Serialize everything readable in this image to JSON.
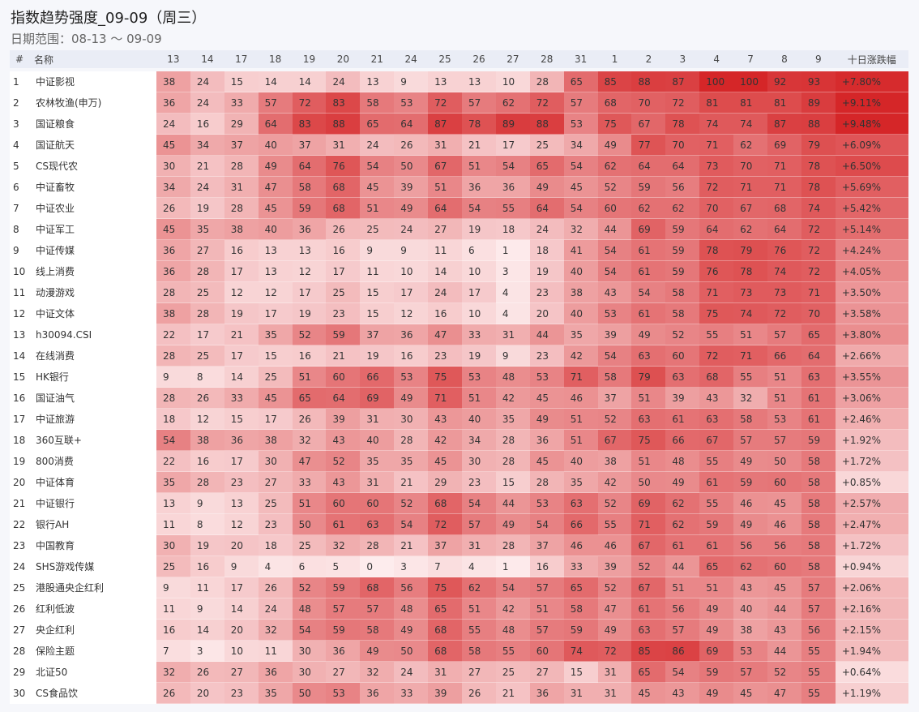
{
  "header": {
    "title": "指数趋势强度_09-09（周三）",
    "subtitle": "日期范围：08-13 ～ 09-09"
  },
  "table": {
    "columns": {
      "rank": "#",
      "name": "名称",
      "days": [
        "13",
        "14",
        "17",
        "18",
        "19",
        "20",
        "21",
        "24",
        "25",
        "26",
        "27",
        "28",
        "31",
        "1",
        "2",
        "3",
        "4",
        "7",
        "8",
        "9"
      ],
      "change": "十日涨跌幅"
    },
    "rows": [
      {
        "rank": "1",
        "name": "中证影视",
        "values": [
          38,
          24,
          15,
          14,
          14,
          24,
          13,
          9,
          13,
          13,
          10,
          28,
          65,
          85,
          88,
          87,
          100,
          100,
          92,
          93
        ],
        "change": "+7.80%"
      },
      {
        "rank": "2",
        "name": "农林牧渔(申万)",
        "values": [
          36,
          24,
          33,
          57,
          72,
          83,
          58,
          53,
          72,
          57,
          62,
          72,
          57,
          68,
          70,
          72,
          81,
          81,
          81,
          89
        ],
        "change": "+9.11%"
      },
      {
        "rank": "3",
        "name": "国证粮食",
        "values": [
          24,
          16,
          29,
          64,
          83,
          88,
          65,
          64,
          87,
          78,
          89,
          88,
          53,
          75,
          67,
          78,
          74,
          74,
          87,
          88
        ],
        "change": "+9.48%"
      },
      {
        "rank": "4",
        "name": "国证航天",
        "values": [
          45,
          34,
          37,
          40,
          37,
          31,
          24,
          26,
          31,
          21,
          17,
          25,
          34,
          49,
          77,
          70,
          71,
          62,
          69,
          79
        ],
        "change": "+6.09%"
      },
      {
        "rank": "5",
        "name": "CS现代农",
        "values": [
          30,
          21,
          28,
          49,
          64,
          76,
          54,
          50,
          67,
          51,
          54,
          65,
          54,
          62,
          64,
          64,
          73,
          70,
          71,
          78
        ],
        "change": "+6.50%"
      },
      {
        "rank": "6",
        "name": "中证畜牧",
        "values": [
          34,
          24,
          31,
          47,
          58,
          68,
          45,
          39,
          51,
          36,
          36,
          49,
          45,
          52,
          59,
          56,
          72,
          71,
          71,
          78
        ],
        "change": "+5.69%"
      },
      {
        "rank": "7",
        "name": "中证农业",
        "values": [
          26,
          19,
          28,
          45,
          59,
          68,
          51,
          49,
          64,
          54,
          55,
          64,
          54,
          60,
          62,
          62,
          70,
          67,
          68,
          74
        ],
        "change": "+5.42%"
      },
      {
        "rank": "8",
        "name": "中证军工",
        "values": [
          45,
          35,
          38,
          40,
          36,
          26,
          25,
          24,
          27,
          19,
          18,
          24,
          32,
          44,
          69,
          59,
          64,
          62,
          64,
          72
        ],
        "change": "+5.14%"
      },
      {
        "rank": "9",
        "name": "中证传媒",
        "values": [
          36,
          27,
          16,
          13,
          13,
          16,
          9,
          9,
          11,
          6,
          1,
          18,
          41,
          54,
          61,
          59,
          78,
          79,
          76,
          72
        ],
        "change": "+4.24%"
      },
      {
        "rank": "10",
        "name": "线上消费",
        "values": [
          36,
          28,
          17,
          13,
          12,
          17,
          11,
          10,
          14,
          10,
          3,
          19,
          40,
          54,
          61,
          59,
          76,
          78,
          74,
          72
        ],
        "change": "+4.05%"
      },
      {
        "rank": "11",
        "name": "动漫游戏",
        "values": [
          28,
          25,
          12,
          12,
          17,
          25,
          15,
          17,
          24,
          17,
          4,
          23,
          38,
          43,
          54,
          58,
          71,
          73,
          73,
          71
        ],
        "change": "+3.50%"
      },
      {
        "rank": "12",
        "name": "中证文体",
        "values": [
          38,
          28,
          19,
          17,
          19,
          23,
          15,
          12,
          16,
          10,
          4,
          20,
          40,
          53,
          61,
          58,
          75,
          74,
          72,
          70
        ],
        "change": "+3.58%"
      },
      {
        "rank": "13",
        "name": "h30094.CSI",
        "values": [
          22,
          17,
          21,
          35,
          52,
          59,
          37,
          36,
          47,
          33,
          31,
          44,
          35,
          39,
          49,
          52,
          55,
          51,
          57,
          65
        ],
        "change": "+3.80%"
      },
      {
        "rank": "14",
        "name": "在线消费",
        "values": [
          28,
          25,
          17,
          15,
          16,
          21,
          19,
          16,
          23,
          19,
          9,
          23,
          42,
          54,
          63,
          60,
          72,
          71,
          66,
          64
        ],
        "change": "+2.66%"
      },
      {
        "rank": "15",
        "name": "HK银行",
        "values": [
          9,
          8,
          14,
          25,
          51,
          60,
          66,
          53,
          75,
          53,
          48,
          53,
          71,
          58,
          79,
          63,
          68,
          55,
          51,
          63
        ],
        "change": "+3.55%"
      },
      {
        "rank": "16",
        "name": "国证油气",
        "values": [
          28,
          26,
          33,
          45,
          65,
          64,
          69,
          49,
          71,
          51,
          42,
          45,
          46,
          37,
          51,
          39,
          43,
          32,
          51,
          61
        ],
        "change": "+3.06%"
      },
      {
        "rank": "17",
        "name": "中证旅游",
        "values": [
          18,
          12,
          15,
          17,
          26,
          39,
          31,
          30,
          43,
          40,
          35,
          49,
          51,
          52,
          63,
          61,
          63,
          58,
          53,
          61
        ],
        "change": "+2.46%"
      },
      {
        "rank": "18",
        "name": "360互联+",
        "values": [
          54,
          38,
          36,
          38,
          32,
          43,
          40,
          28,
          42,
          34,
          28,
          36,
          51,
          67,
          75,
          66,
          67,
          57,
          57,
          59
        ],
        "change": "+1.92%"
      },
      {
        "rank": "19",
        "name": "800消费",
        "values": [
          22,
          16,
          17,
          30,
          47,
          52,
          35,
          35,
          45,
          30,
          28,
          45,
          40,
          38,
          51,
          48,
          55,
          49,
          50,
          58
        ],
        "change": "+1.72%"
      },
      {
        "rank": "20",
        "name": "中证体育",
        "values": [
          35,
          28,
          23,
          27,
          33,
          43,
          31,
          21,
          29,
          23,
          15,
          28,
          35,
          42,
          50,
          49,
          61,
          59,
          60,
          58
        ],
        "change": "+0.85%"
      },
      {
        "rank": "21",
        "name": "中证银行",
        "values": [
          13,
          9,
          13,
          25,
          51,
          60,
          60,
          52,
          68,
          54,
          44,
          53,
          63,
          52,
          69,
          62,
          55,
          46,
          45,
          58
        ],
        "change": "+2.57%"
      },
      {
        "rank": "22",
        "name": "银行AH",
        "values": [
          11,
          8,
          12,
          23,
          50,
          61,
          63,
          54,
          72,
          57,
          49,
          54,
          66,
          55,
          71,
          62,
          59,
          49,
          46,
          58
        ],
        "change": "+2.47%"
      },
      {
        "rank": "23",
        "name": "中国教育",
        "values": [
          30,
          19,
          20,
          18,
          25,
          32,
          28,
          21,
          37,
          31,
          28,
          37,
          46,
          46,
          67,
          61,
          61,
          56,
          56,
          58
        ],
        "change": "+1.72%"
      },
      {
        "rank": "24",
        "name": "SHS游戏传媒",
        "values": [
          25,
          16,
          9,
          4,
          6,
          5,
          0,
          3,
          7,
          4,
          1,
          16,
          33,
          39,
          52,
          44,
          65,
          62,
          60,
          58
        ],
        "change": "+0.94%"
      },
      {
        "rank": "25",
        "name": "港股通央企红利",
        "values": [
          9,
          11,
          17,
          26,
          52,
          59,
          68,
          56,
          75,
          62,
          54,
          57,
          65,
          52,
          67,
          51,
          51,
          43,
          45,
          57
        ],
        "change": "+2.06%"
      },
      {
        "rank": "26",
        "name": "红利低波",
        "values": [
          11,
          9,
          14,
          24,
          48,
          57,
          57,
          48,
          65,
          51,
          42,
          51,
          58,
          47,
          61,
          56,
          49,
          40,
          44,
          57
        ],
        "change": "+2.16%"
      },
      {
        "rank": "27",
        "name": "央企红利",
        "values": [
          16,
          14,
          20,
          32,
          54,
          59,
          58,
          49,
          68,
          55,
          48,
          57,
          59,
          49,
          63,
          57,
          49,
          38,
          43,
          56
        ],
        "change": "+2.15%"
      },
      {
        "rank": "28",
        "name": "保险主题",
        "values": [
          7,
          3,
          10,
          11,
          30,
          36,
          49,
          50,
          68,
          58,
          55,
          60,
          74,
          72,
          85,
          86,
          69,
          53,
          44,
          55
        ],
        "change": "+1.94%"
      },
      {
        "rank": "29",
        "name": "北证50",
        "values": [
          32,
          26,
          27,
          36,
          30,
          27,
          32,
          24,
          31,
          27,
          25,
          27,
          15,
          31,
          65,
          54,
          59,
          57,
          52,
          55
        ],
        "change": "+0.64%"
      },
      {
        "rank": "30",
        "name": "CS食品饮",
        "values": [
          26,
          20,
          23,
          35,
          50,
          53,
          36,
          33,
          39,
          26,
          21,
          36,
          31,
          31,
          45,
          43,
          49,
          45,
          47,
          55
        ],
        "change": "+1.19%"
      }
    ]
  }
}
